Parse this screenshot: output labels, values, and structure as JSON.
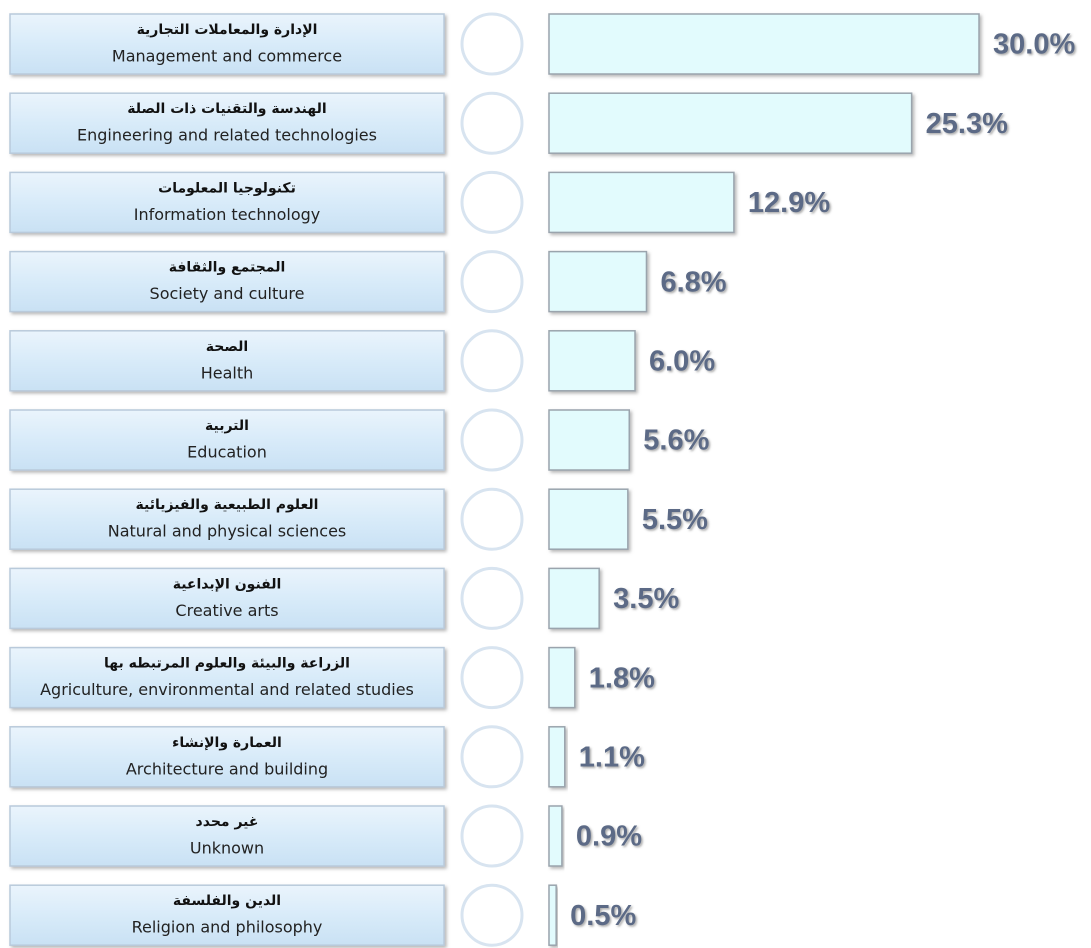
{
  "chart_data": {
    "type": "bar",
    "categories": [
      "Management and commerce",
      "Engineering and related technologies",
      "Information technology",
      "Society and culture",
      "Health",
      "Education",
      "Natural and physical sciences",
      "Creative arts",
      "Agriculture, environmental and related studies",
      "Architecture and building",
      "Unknown",
      "Religion and philosophy"
    ],
    "categories_ar": [
      "الإدارة والمعاملات التجارية",
      "الهندسة والتقنيات ذات الصلة",
      "تكنولوجيا المعلومات",
      "المجتمع والثقافة",
      "الصحة",
      "التربية",
      "العلوم الطبيعية والفيزيائية",
      "الفنون الإبداعية",
      "الزراعة والبيئة والعلوم المرتبطه بها",
      "العمارة والإنشاء",
      "غير محدد",
      "الدين والفلسفة"
    ],
    "values": [
      30.0,
      25.3,
      12.9,
      6.8,
      6.0,
      5.6,
      5.5,
      3.5,
      1.8,
      1.1,
      0.9,
      0.5
    ],
    "value_labels": [
      "30.0%",
      "25.3%",
      "12.9%",
      "6.8%",
      "6.0%",
      "5.6%",
      "5.5%",
      "3.5%",
      "1.8%",
      "1.1%",
      "0.9%",
      "0.5%"
    ],
    "color": "#e2fbfd"
  }
}
